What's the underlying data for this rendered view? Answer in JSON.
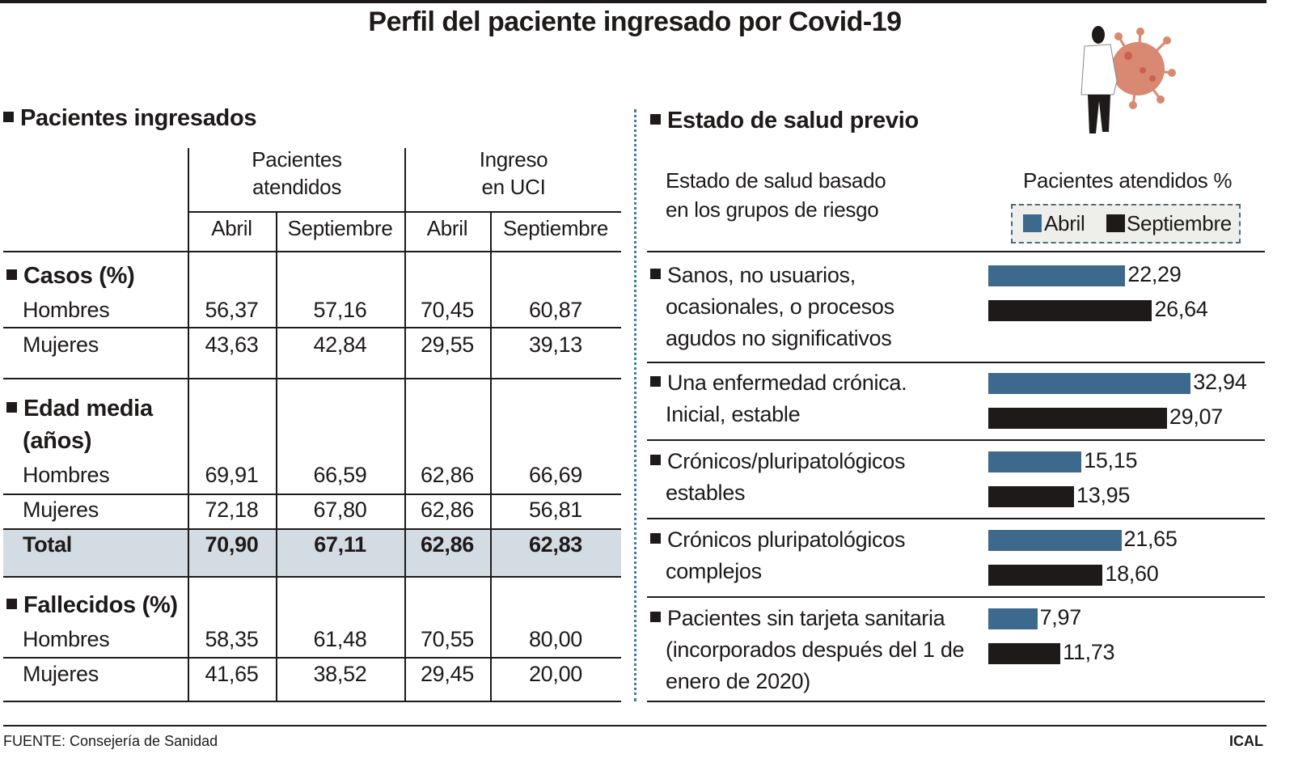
{
  "title": "Perfil del paciente ingresado por Covid-19",
  "left": {
    "heading": "Pacientes ingresados",
    "group_headers": [
      [
        "Pacientes",
        "atendidos"
      ],
      [
        "Ingreso",
        "en UCI"
      ]
    ],
    "sub_headers": [
      "Abril",
      "Septiembre",
      "Abril",
      "Septiembre"
    ],
    "sections": [
      {
        "title": [
          "Casos (%)"
        ],
        "rows": [
          {
            "label": "Hombres",
            "values": [
              "56,37",
              "57,16",
              "70,45",
              "60,87"
            ]
          },
          {
            "label": "Mujeres",
            "values": [
              "43,63",
              "42,84",
              "29,55",
              "39,13"
            ]
          }
        ]
      },
      {
        "title": [
          "Edad media",
          "(años)"
        ],
        "rows": [
          {
            "label": "Hombres",
            "values": [
              "69,91",
              "66,59",
              "62,86",
              "66,69"
            ]
          },
          {
            "label": "Mujeres",
            "values": [
              "72,18",
              "67,80",
              "62,86",
              "56,81"
            ]
          },
          {
            "label": "Total",
            "values": [
              "70,90",
              "67,11",
              "62,86",
              "62,83"
            ],
            "bold": true
          }
        ]
      },
      {
        "title": [
          "Fallecidos (%)"
        ],
        "rows": [
          {
            "label": "Hombres",
            "values": [
              "58,35",
              "61,48",
              "70,55",
              "80,00"
            ]
          },
          {
            "label": "Mujeres",
            "values": [
              "41,65",
              "38,52",
              "29,45",
              "20,00"
            ]
          }
        ]
      }
    ]
  },
  "right": {
    "heading": "Estado de salud previo",
    "col1_header": [
      "Estado de salud basado",
      "en los grupos de riesgo"
    ],
    "col2_header": "Pacientes atendidos %"
  },
  "chart_data": {
    "type": "bar",
    "orientation": "horizontal",
    "categories": [
      [
        "Sanos, no usuarios,",
        "ocasionales, o procesos",
        "agudos no significativos"
      ],
      [
        "Una enfermedad crónica.",
        "Inicial, estable"
      ],
      [
        "Crónicos/pluripatológicos",
        "estables"
      ],
      [
        "Crónicos pluripatológicos",
        "complejos"
      ],
      [
        "Pacientes sin tarjeta sanitaria",
        "(incorporados después del 1 de",
        "enero de 2020)"
      ]
    ],
    "series": [
      {
        "name": "Abril",
        "color": "#3d6a8c",
        "values": [
          22.29,
          32.94,
          15.15,
          21.65,
          7.97
        ],
        "labels": [
          "22,29",
          "32,94",
          "15,15",
          "21,65",
          "7,97"
        ]
      },
      {
        "name": "Septiembre",
        "color": "#1e1a1a",
        "values": [
          26.64,
          29.07,
          13.95,
          18.6,
          11.73
        ],
        "labels": [
          "26,64",
          "29,07",
          "13,95",
          "18,60",
          "11,73"
        ]
      }
    ],
    "legend": "top-right",
    "grid": false
  },
  "footer": {
    "source": "FUENTE: Consejería de Sanidad",
    "credit": "ICAL"
  }
}
